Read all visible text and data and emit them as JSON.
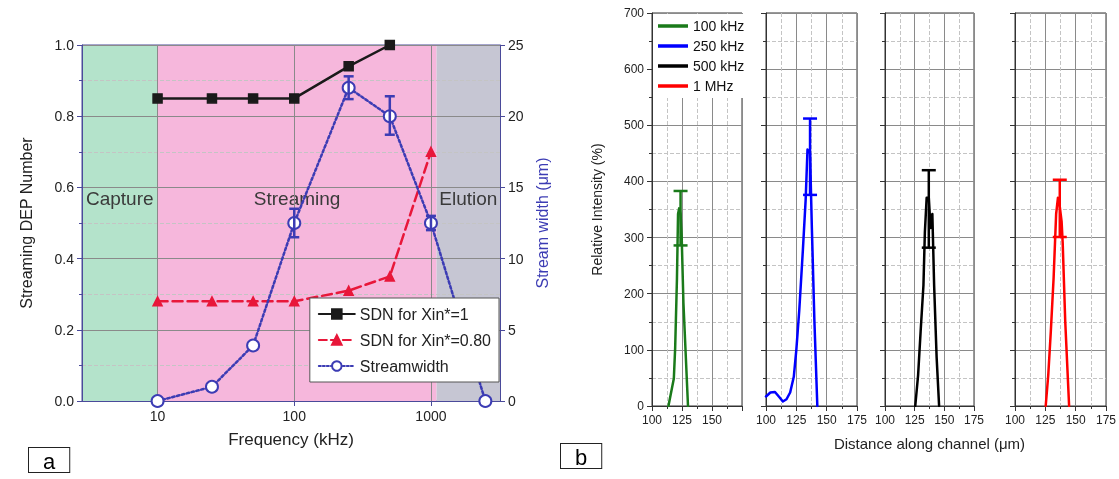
{
  "chart_data": [
    {
      "type": "line",
      "xlabel": "Frequency (kHz)",
      "ylabel": "Streaming DEP Number",
      "y2label": "Stream width (μm)",
      "log": "x",
      "xlim": [
        2.8,
        3200
      ],
      "xticks": [
        10,
        100,
        1000
      ],
      "ylim": [
        0,
        1
      ],
      "yticks": [
        {
          "value": 0,
          "label": "0.0"
        },
        {
          "value": 0.2,
          "label": "0.2"
        },
        {
          "value": 0.4,
          "label": "0.4"
        },
        {
          "value": 0.6,
          "label": "0.6"
        },
        {
          "value": 0.8,
          "label": "0.8"
        },
        {
          "value": 1,
          "label": "1.0"
        }
      ],
      "y2lim": [
        0,
        25
      ],
      "y2ticks": [
        0,
        5,
        10,
        15,
        20,
        25
      ],
      "grid": true,
      "legend": "bottom right",
      "annotations": [
        "a"
      ],
      "bands": [
        {
          "axis": "x",
          "from": 2.8,
          "to": 10,
          "label": "Capture",
          "color": "#b4e3cb"
        },
        {
          "axis": "x",
          "from": 10,
          "to": 1100,
          "label": "Streaming",
          "color": "#f6b7dc"
        },
        {
          "axis": "x",
          "from": 1100,
          "to": 3200,
          "label": "Elution",
          "color": "#c6c6d3"
        }
      ],
      "series": [
        {
          "name": "SDN for Xin*=1",
          "color": "#1a1a1a",
          "marker": "square",
          "line_style": "solid",
          "x": [
            10,
            25,
            50,
            100,
            250,
            500
          ],
          "values": [
            0.85,
            0.85,
            0.85,
            0.85,
            0.94,
            1.0
          ]
        },
        {
          "name": "SDN for Xin*=0.80",
          "color": "#e8173a",
          "marker": "triangle",
          "line_style": "dashed",
          "x": [
            10,
            25,
            50,
            100,
            250,
            500,
            1000
          ],
          "values": [
            0.28,
            0.28,
            0.28,
            0.28,
            0.31,
            0.35,
            0.7
          ]
        },
        {
          "name": "Streamwidth",
          "color": "#3c3cb4",
          "marker": "circle",
          "line_style": "dotted",
          "axis": "y2",
          "x": [
            10,
            25,
            50,
            100,
            250,
            500,
            1000,
            2500
          ],
          "values": [
            0,
            1,
            3.9,
            12.5,
            22,
            20,
            12.5,
            0
          ],
          "errors": [
            null,
            null,
            null,
            1,
            [
              21.2,
              22.8
            ],
            [
              18.7,
              21.4
            ],
            0.5,
            null
          ]
        }
      ]
    },
    {
      "type": "line",
      "ylabel": "Relative Intensity (%)",
      "xlim": [
        100,
        175
      ],
      "xticks": [
        100,
        125,
        150,
        {
          "value": 175,
          "label": null
        }
      ],
      "ylim": [
        0,
        700
      ],
      "yticks": [
        0,
        100,
        200,
        300,
        400,
        500,
        600,
        700
      ],
      "grid": true,
      "legend": "top left",
      "annotations": [
        "b"
      ],
      "series": [
        {
          "name": "100 kHz",
          "color": "#1a7a1a",
          "x": [
            113.7,
            118.2,
            119.3,
            120.8,
            121.7,
            122.6,
            123.8,
            124.7,
            126.2,
            130
          ],
          "values": [
            0,
            49,
            103,
            227,
            342,
            352,
            342,
            304,
            183,
            0
          ],
          "errors": [
            null,
            null,
            null,
            null,
            null,
            null,
            [
              286,
              383
            ],
            null,
            null,
            null
          ]
        }
      ]
    },
    {
      "type": "line",
      "xlim": [
        100,
        175
      ],
      "xticks": [
        100,
        125,
        150,
        175
      ],
      "ylim": [
        0,
        700
      ],
      "yticks": [
        0,
        100,
        200,
        300,
        400,
        500,
        600,
        700
      ],
      "grid": true,
      "tick_labels": "x",
      "series": [
        {
          "name": "250 kHz",
          "color": "#0000ff",
          "x": [
            100,
            103.6,
            107.4,
            110.9,
            113.9,
            116.9,
            119.9,
            122.9,
            125,
            127.4,
            130.4,
            132.7,
            134.2,
            136.3,
            137.8,
            139.9,
            142.3
          ],
          "values": [
            17,
            24,
            25,
            16,
            8,
            12,
            24,
            52,
            100,
            170,
            278,
            368,
            457,
            450,
            317,
            151,
            0
          ],
          "errors": [
            null,
            null,
            null,
            null,
            null,
            null,
            null,
            null,
            null,
            null,
            null,
            null,
            null,
            [
              376,
              512
            ],
            null,
            null,
            null
          ]
        }
      ]
    },
    {
      "type": "line",
      "xlabel": "Distance along channel (μm)",
      "xlim": [
        100,
        175
      ],
      "xticks": [
        100,
        125,
        150,
        175
      ],
      "ylim": [
        0,
        700
      ],
      "yticks": [
        0,
        100,
        200,
        300,
        400,
        500,
        600,
        700
      ],
      "grid": true,
      "tick_labels": "x",
      "series": [
        {
          "name": "500 kHz",
          "color": "#000000",
          "x": [
            125.5,
            127.9,
            130,
            132.4,
            133.6,
            135.1,
            136.9,
            138.4,
            139.9,
            141.4,
            143.5,
            145.6
          ],
          "values": [
            0,
            55,
            132,
            215,
            310,
            371,
            371,
            317,
            342,
            215,
            87,
            0
          ],
          "errors": [
            null,
            null,
            null,
            null,
            null,
            null,
            [
              282,
              420
            ],
            null,
            null,
            null,
            null,
            null
          ]
        }
      ]
    },
    {
      "type": "line",
      "xlim": [
        100,
        175
      ],
      "xticks": [
        100,
        125,
        150,
        175
      ],
      "ylim": [
        0,
        700
      ],
      "yticks": [
        0,
        100,
        200,
        300,
        400,
        500,
        600,
        700
      ],
      "grid": true,
      "tick_labels": "x",
      "series": [
        {
          "name": "1 MHz",
          "color": "#ff0000",
          "x": [
            125.3,
            127.4,
            129.5,
            131.8,
            133.9,
            135.4,
            136.9,
            138.4,
            139.3,
            141.4,
            144.6
          ],
          "values": [
            0,
            55,
            132,
            227,
            342,
            371,
            355,
            329,
            291,
            151,
            0
          ],
          "errors": [
            null,
            null,
            null,
            null,
            null,
            null,
            [
              301,
              403
            ],
            null,
            null,
            null,
            null
          ]
        }
      ]
    }
  ]
}
